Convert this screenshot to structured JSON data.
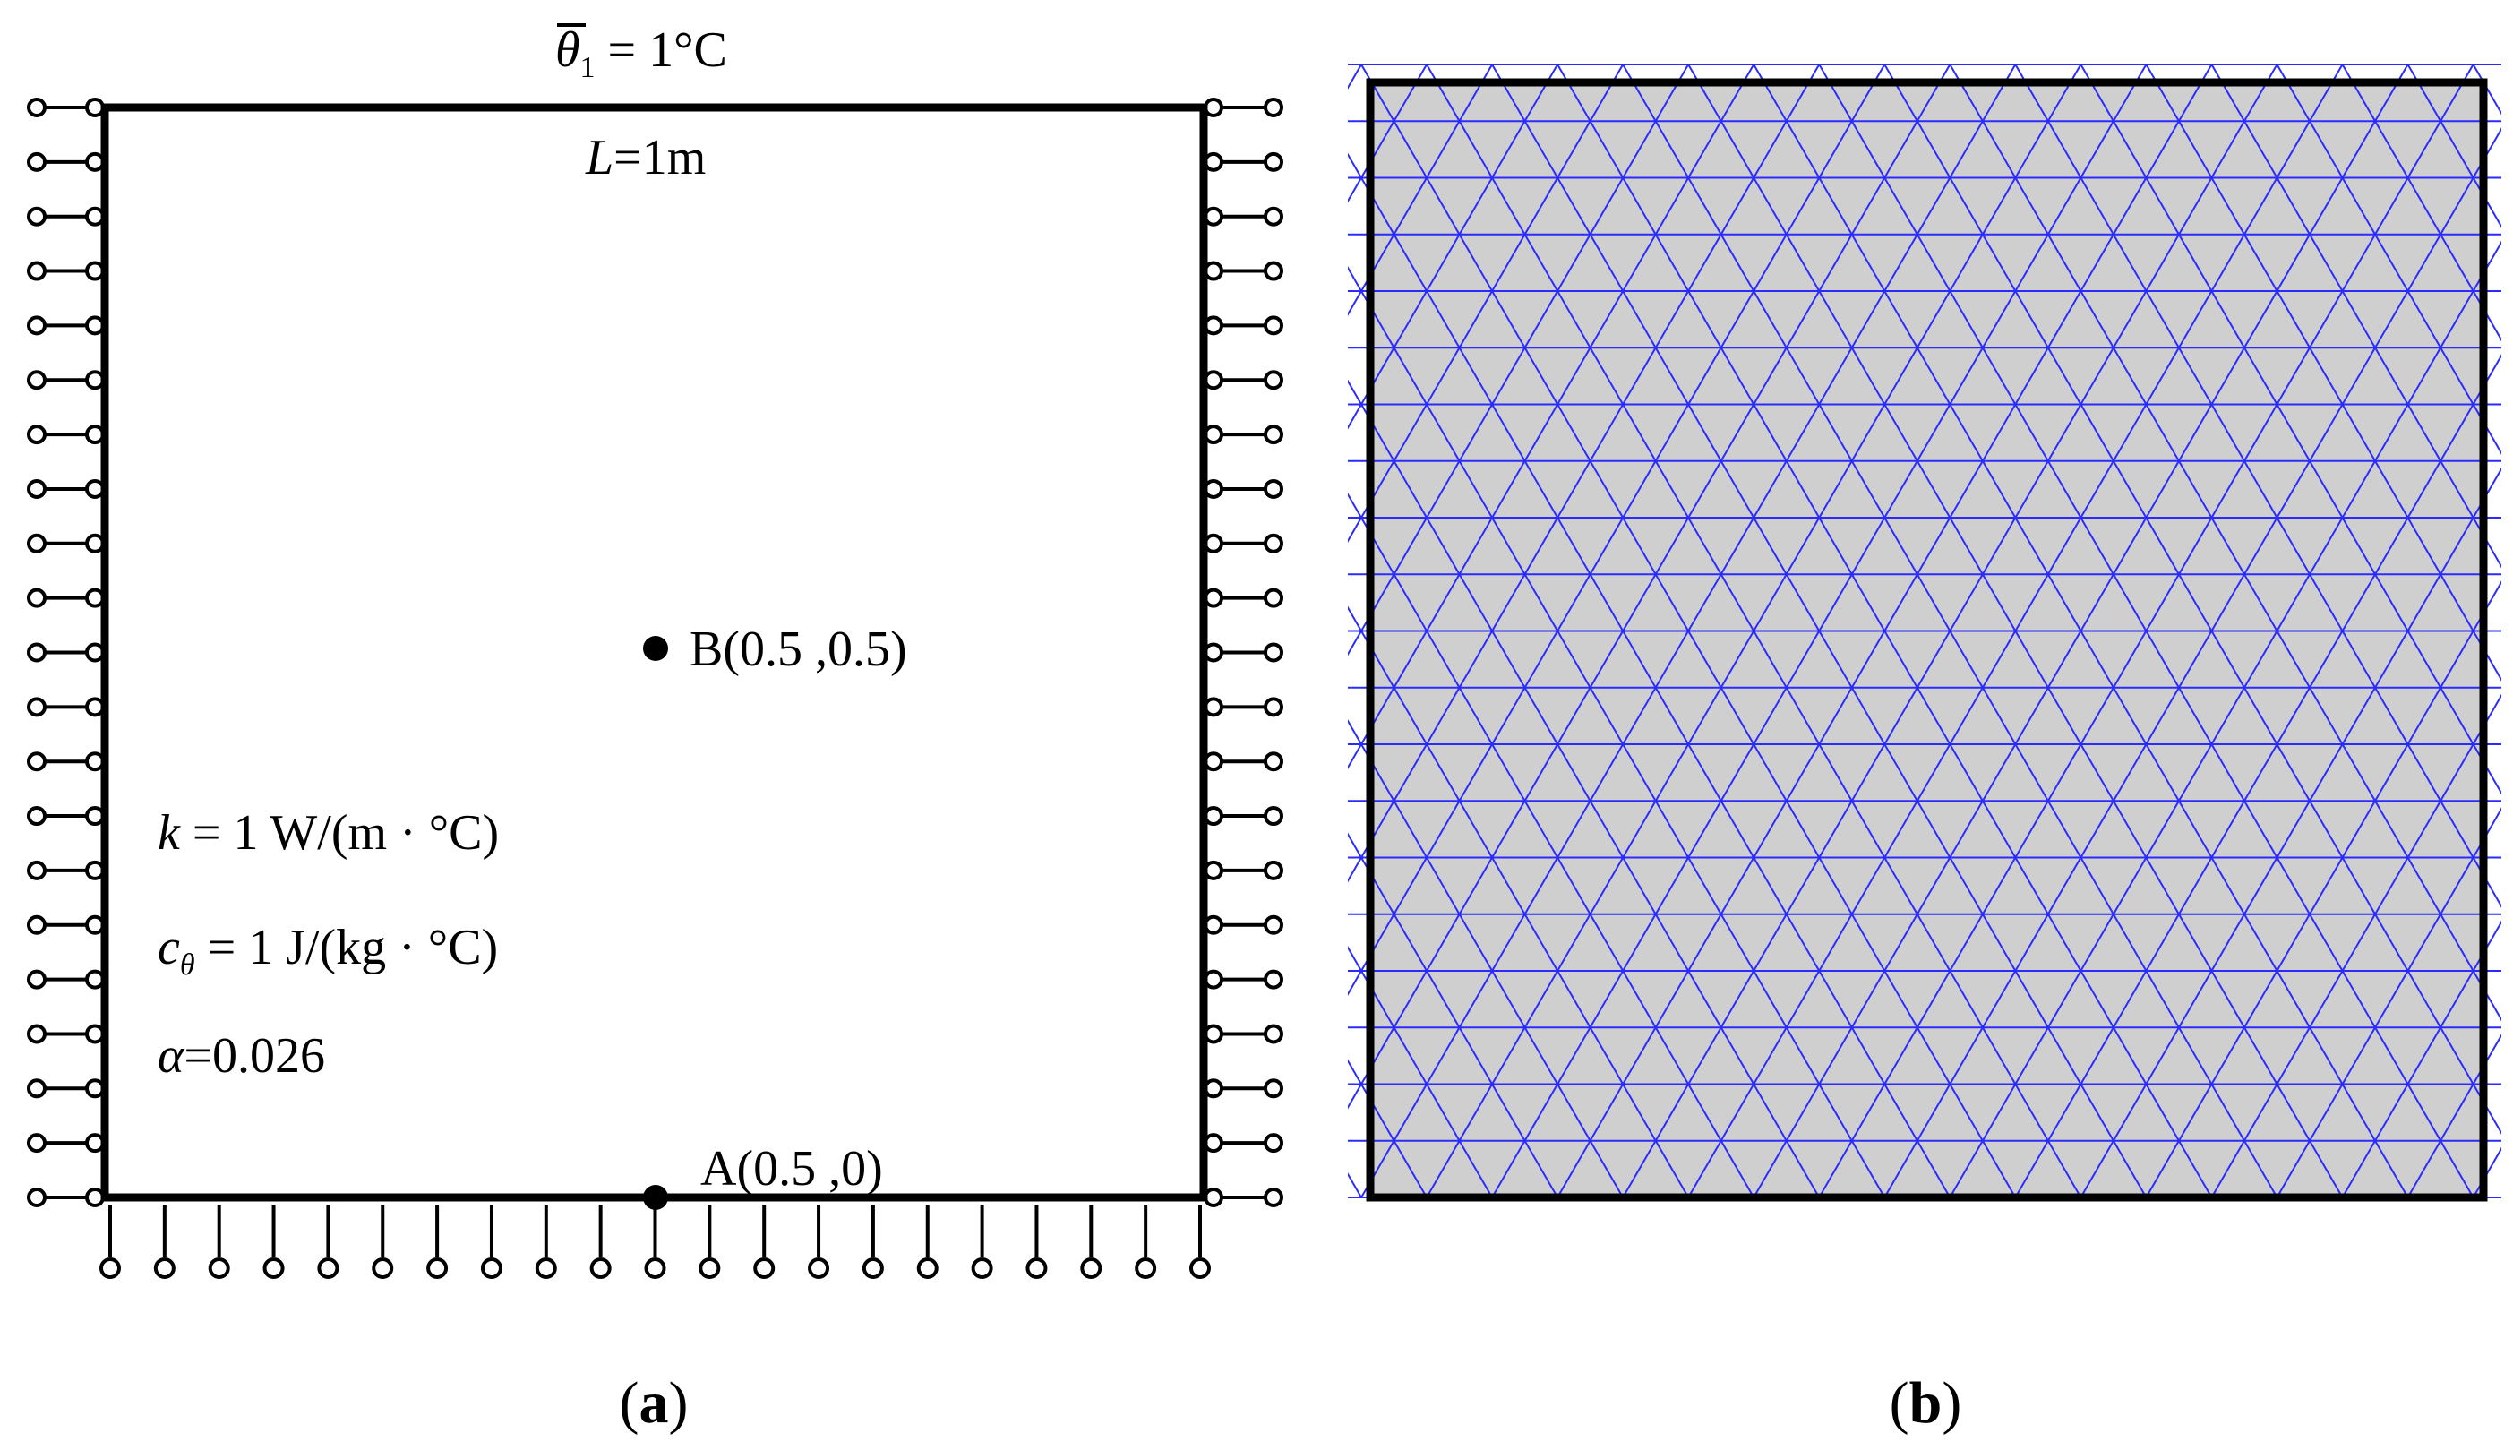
{
  "panel_a": {
    "boundary_temp": {
      "symbol": "θ",
      "subscript": "1",
      "rest": " = 1°C"
    },
    "length": {
      "symbol": "L",
      "rest": "=1m"
    },
    "point_b": "B(0.5 ,0.5)",
    "point_a": "A(0.5 ,0)",
    "conductivity": {
      "symbol": "k",
      "rest": " = 1 W/(m · °C)"
    },
    "heat_capacity": {
      "symbol": "c",
      "subscript": "θ",
      "rest": " = 1 J/(kg · °C)"
    },
    "alpha": {
      "symbol": "α",
      "rest": "=0.026"
    },
    "caption": {
      "open": "(",
      "letter": "a",
      "close": ")"
    }
  },
  "panel_b": {
    "caption": {
      "open": "(",
      "letter": "b",
      "close": ")"
    }
  },
  "colors": {
    "outline": "#000000",
    "mesh_line": "#2b2bff",
    "mesh_fill": "#cfcfcf",
    "background": "#ffffff"
  }
}
